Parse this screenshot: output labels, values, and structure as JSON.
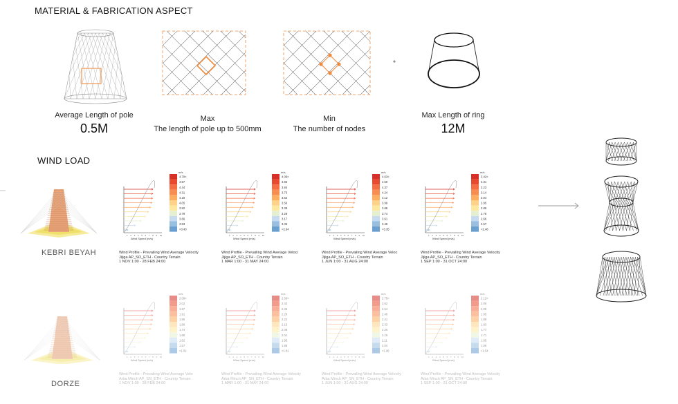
{
  "headings": {
    "material": "MATERIAL & FABRICATION ASPECT",
    "wind": "WIND LOAD"
  },
  "material_items": [
    {
      "label": "Average Length of pole",
      "value": "0.5M"
    },
    {
      "label": "Max",
      "sub": "The length of pole up to 500mm"
    },
    {
      "label": "Min",
      "sub": "The number of nodes"
    },
    {
      "label": "Max Length of ring",
      "value": "12M"
    }
  ],
  "colors": {
    "accent": "#f08a3c",
    "ink": "#222222"
  },
  "sites": [
    {
      "name": "KEBRI BEYAH",
      "charts": [
        {
          "unit": "m/s",
          "ticks": [
            "4.70<",
            "4.57",
            "4.44",
            "4.31",
            "4.18",
            "4.05",
            "3.92",
            "3.79",
            "3.66",
            "3.53",
            "<3.40"
          ],
          "xlabel": "Wind Speed (m/s)",
          "caption": [
            "Wind Profile  - Prevailing Wind Average Velocity",
            "Jijiga AP_SO_ETH - Country Terrain",
            "1 NOV 1:00 - 28 FEB 24:00"
          ]
        },
        {
          "unit": "m/s",
          "ticks": [
            "4.06<",
            "3.95",
            "3.84",
            "3.73",
            "3.62",
            "3.50",
            "3.39",
            "3.28",
            "3.17",
            "3.06",
            "<2.94"
          ],
          "xlabel": "Wind Speed (m/s)",
          "caption": [
            "Wind Profile  - Prevailing Wind Average Veloci",
            "Jijiga AP_SO_ETH - Country Terrain",
            "1 MAR 1:00 - 31 MAY 24:00"
          ]
        },
        {
          "unit": "m/s",
          "ticks": [
            "4.63<",
            "4.50",
            "4.37",
            "4.24",
            "4.12",
            "3.99",
            "3.86",
            "3.74",
            "3.61",
            "3.48",
            "<3.35"
          ],
          "xlabel": "Wind Speed (m/s)",
          "caption": [
            "Wind Profile  - Prevailing Wind Average Veloc",
            "Jijiga AP_SO_ETH - Country Terrain",
            "1 JUN 1:00 - 31 AUG 24:00"
          ]
        },
        {
          "unit": "m/s",
          "ticks": [
            "3.42<",
            "3.31",
            "3.23",
            "3.14",
            "3.04",
            "2.95",
            "2.85",
            "2.76",
            "2.66",
            "2.57",
            "<2.46"
          ],
          "xlabel": "Wind Speed (m/s)",
          "caption": [
            "Wind Profile  - Prevailing Wind Average Velocity",
            "Jijiga AP_SO_ETH - Country Terrain",
            "1 SEP 1:00 - 31 OCT 24:00"
          ]
        }
      ]
    },
    {
      "name": "DORZE",
      "charts": [
        {
          "unit": "m/s",
          "ticks": [
            "2.08<",
            "2.02",
            "1.97",
            "1.91",
            "1.85",
            "1.80",
            "1.74",
            "1.68",
            "1.62",
            "1.57",
            "<1.51"
          ],
          "xlabel": "Wind Speed (m/s)",
          "caption": [
            "Wind Profile  - Prevailing Wind Average Velo",
            "Arba Minch AP_SN_ETH - Country Terrain",
            "1 NOV 1:00 - 28 FEB 24:00"
          ]
        },
        {
          "unit": "m/s",
          "ticks": [
            "2.50<",
            "2.43",
            "2.36",
            "2.29",
            "2.22",
            "2.15",
            "2.08",
            "2.01",
            "1.95",
            "1.88",
            "<1.81"
          ],
          "xlabel": "Wind Speed (m/s)",
          "caption": [
            "Wind Profile  - Prevailing Wind Average Velocity",
            "Arba Minch AP_SN_ETH - Country Terrain",
            "1 MAR 1:00 - 31 MAY 24:00"
          ]
        },
        {
          "unit": "m/s",
          "ticks": [
            "2.75<",
            "2.62",
            "2.54",
            "2.48",
            "2.41",
            "2.33",
            "2.26",
            "2.19",
            "2.11",
            "2.04",
            "<1.96"
          ],
          "xlabel": "Wind Speed (m/s)",
          "caption": [
            "Wind Profile  - Prevailing Wind Average Velocity",
            "Arba Minch AP_SN_ETH - Country Terrain",
            "1 JUN 1:00 - 31 AUG 24:00"
          ]
        },
        {
          "unit": "m/s",
          "ticks": [
            "2.12<",
            "2.06",
            "2.00",
            "1.95",
            "1.89",
            "1.83",
            "1.77",
            "1.71",
            "1.65",
            "1.59",
            "<1.54"
          ],
          "xlabel": "Wind Speed (m/s)",
          "caption": [
            "Wind Profile  - Prevailing Wind Average Velocity",
            "Arba Minch AP_SN_ETH - Country Terrain",
            "1 SEP 1:00 - 31 OCT 24:00"
          ]
        }
      ]
    }
  ]
}
